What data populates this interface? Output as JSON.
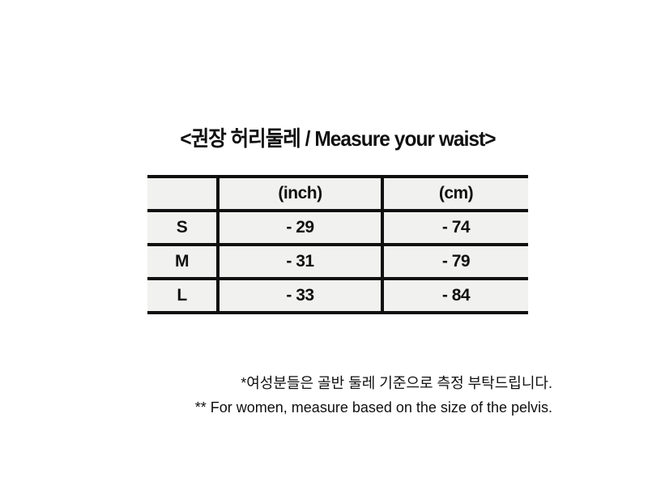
{
  "chart_data": {
    "type": "table",
    "title": "<권장 허리둘레 / Measure your waist>",
    "columns": [
      "",
      "(inch)",
      "(cm)"
    ],
    "rows": [
      [
        "S",
        "- 29",
        "- 74"
      ],
      [
        "M",
        "- 31",
        "- 79"
      ],
      [
        "L",
        "- 33",
        "- 84"
      ]
    ],
    "notes": [
      "*여성분들은 골반 둘레 기준으로 측정 부탁드립니다.",
      "** For women, measure based on the size of the pelvis."
    ],
    "layout_hints": {
      "header_row_has_empty_first_cell": true,
      "outer_vertical_borders": false,
      "cell_background": "#f1f1ef",
      "border_color": "#101010",
      "page_background": "#ffffff",
      "text_color": "#101010",
      "notes_alignment": "right"
    }
  }
}
